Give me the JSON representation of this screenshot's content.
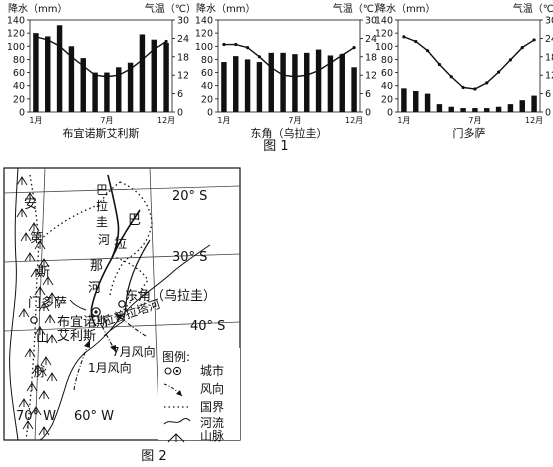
{
  "figure1": {
    "caption": "图 1",
    "charts": [
      {
        "type": "bar",
        "title": "布宜诺斯艾利斯",
        "ylabel_left": "降水（mm）",
        "ylabel_right": "气温（℃）",
        "left_ticks": [
          "0",
          "20",
          "40",
          "60",
          "80",
          "100",
          "120",
          "140"
        ],
        "right_ticks": [
          "0",
          "6",
          "12",
          "18",
          "24",
          "30"
        ],
        "x_labels": [
          "1月",
          "7月",
          "12月"
        ],
        "ylim_precip": [
          0,
          140
        ],
        "ylim_temp": [
          0,
          30
        ],
        "precip": [
          120,
          115,
          132,
          100,
          82,
          60,
          60,
          68,
          75,
          118,
          110,
          105
        ],
        "temp": [
          24.5,
          23.5,
          21.5,
          18,
          15,
          12,
          11.5,
          12,
          14,
          17,
          20.5,
          23
        ]
      },
      {
        "type": "bar",
        "title": "东角（乌拉圭）",
        "ylabel_left": "降水（mm）",
        "ylabel_right": "气温（℃）",
        "left_ticks": [
          "0",
          "20",
          "40",
          "60",
          "80",
          "100",
          "120",
          "140"
        ],
        "right_ticks": [
          "0",
          "6",
          "12",
          "18",
          "24",
          "30"
        ],
        "x_labels": [
          "1月",
          "7月",
          "12月"
        ],
        "ylim_precip": [
          0,
          140
        ],
        "ylim_temp": [
          0,
          30
        ],
        "precip": [
          76,
          85,
          80,
          76,
          90,
          90,
          88,
          90,
          95,
          86,
          88,
          68
        ],
        "temp": [
          22,
          22,
          21,
          18,
          14.5,
          12,
          11.5,
          12,
          13.5,
          16,
          18.5,
          21
        ]
      },
      {
        "type": "bar",
        "title": "门多萨",
        "ylabel_left": "降水（mm）",
        "ylabel_right": "气温（℃）",
        "left_ticks": [
          "0",
          "20",
          "40",
          "60",
          "80",
          "100",
          "120",
          "140"
        ],
        "right_ticks": [
          "0",
          "6",
          "12",
          "18",
          "24",
          "30"
        ],
        "x_labels": [
          "1月",
          "7月",
          "12月"
        ],
        "ylim_precip": [
          0,
          140
        ],
        "ylim_temp": [
          0,
          30
        ],
        "precip": [
          36,
          32,
          28,
          12,
          8,
          6,
          6,
          6,
          8,
          12,
          18,
          25
        ],
        "temp": [
          24.5,
          23,
          20,
          15.5,
          11.5,
          8,
          7.5,
          9.5,
          13,
          17,
          21,
          23.5
        ]
      }
    ]
  },
  "figure2": {
    "caption": "图 2",
    "lat_labels": [
      "20° S",
      "30° S",
      "40° S"
    ],
    "lon_labels": [
      "70° W",
      "60° W"
    ],
    "range_label": [
      "安",
      "第",
      "斯",
      "山",
      "脉"
    ],
    "river_chars": [
      "巴",
      "拉",
      "圭",
      "河"
    ],
    "parana_chars": [
      "巴",
      "拉",
      "那",
      "河"
    ],
    "cities": {
      "mendoza": "门多萨",
      "dongjiao": "东角（乌拉圭）",
      "buenos_aires": [
        "布宜诺斯",
        "艾利斯"
      ]
    },
    "rio_de_la_plata": "拉普拉塔河",
    "wind_july": "7月风向",
    "wind_january": "1月风向",
    "legend": {
      "title": "图例:",
      "items": [
        "城市",
        "风向",
        "国界",
        "河流",
        "山脉"
      ]
    }
  }
}
